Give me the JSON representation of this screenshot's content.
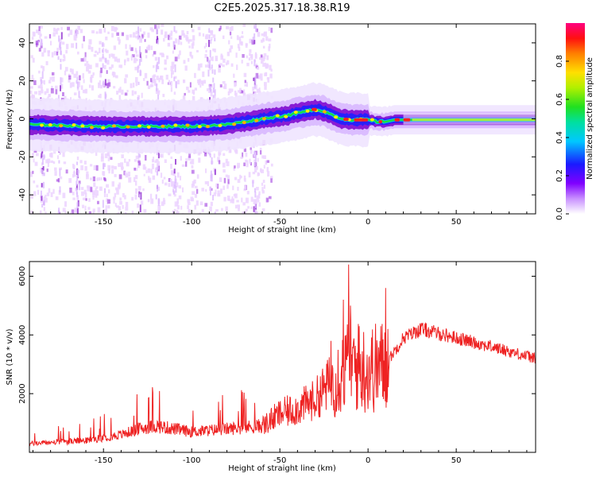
{
  "title": "C2E5.2025.317.18.38.R19",
  "chart_data": [
    {
      "type": "heatmap",
      "name": "spectrogram",
      "xlabel": "Height of straight line (km)",
      "ylabel": "Frequency (Hz)",
      "xlim": [
        -192,
        95
      ],
      "ylim": [
        -50,
        50
      ],
      "xticks": [
        -150,
        -100,
        -50,
        0,
        50
      ],
      "yticks": [
        -40,
        -20,
        0,
        20,
        40
      ],
      "ridge": {
        "x": [
          -192,
          -150,
          -120,
          -100,
          -80,
          -60,
          -45,
          -35,
          -30,
          -25,
          -20,
          -15,
          -10,
          -5,
          0,
          5,
          10,
          15,
          20,
          50,
          95
        ],
        "freq": [
          -3,
          -4,
          -4,
          -4,
          -3,
          0,
          2,
          4,
          5,
          4,
          2,
          0,
          -0.5,
          -0.5,
          -0.5,
          -1.5,
          -1.5,
          -0.5,
          -0.5,
          -0.5,
          -0.5
        ]
      },
      "colorbar": {
        "label": "Normalized spectral amplitude",
        "range": [
          0,
          1
        ],
        "ticks": [
          "0.0",
          "0.2",
          "0.4",
          "0.6",
          "0.8"
        ]
      },
      "colors": {
        "low": "#ecd4ff",
        "mid_low": "#7a00cc",
        "blue": "#2020ff",
        "cyan": "#00dddd",
        "green": "#22dd22",
        "yellow": "#ffee00",
        "red": "#ff2020"
      }
    },
    {
      "type": "line",
      "name": "snr",
      "xlabel": "Height of straight line (km)",
      "ylabel": "SNR (10 * v/v)",
      "xlim": [
        -192,
        95
      ],
      "ylim": [
        0,
        6500
      ],
      "xticks": [
        -150,
        -100,
        -50,
        0,
        50
      ],
      "yticks": [
        2000,
        4000,
        6000
      ],
      "envelope": {
        "x": [
          -192,
          -160,
          -140,
          -130,
          -120,
          -100,
          -80,
          -60,
          -50,
          -40,
          -30,
          -20,
          -10,
          0,
          10,
          20,
          30,
          50,
          70,
          95
        ],
        "y": [
          300,
          400,
          600,
          800,
          900,
          700,
          800,
          900,
          1300,
          1500,
          1800,
          2500,
          3000,
          2800,
          3000,
          3900,
          4200,
          3900,
          3600,
          3200
        ]
      },
      "spikes": [
        {
          "x": -11,
          "y": 6400
        },
        {
          "x": -14,
          "y": 5200
        },
        {
          "x": -10,
          "y": 5000
        },
        {
          "x": 10,
          "y": 5600
        },
        {
          "x": -21,
          "y": 3800
        },
        {
          "x": -5,
          "y": 4300
        }
      ],
      "color": "#ee2222"
    }
  ]
}
